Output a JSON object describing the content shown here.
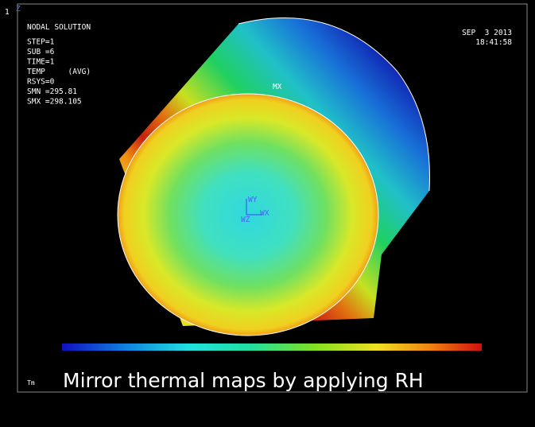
{
  "header": {
    "window_number": "1",
    "axis_label": "Z"
  },
  "info_lines": [
    "NODAL SOLUTION",
    "STEP=1",
    "SUB =6",
    "TIME=1",
    "TEMP     (AVG)",
    "RSYS=0",
    "SMN =295.81",
    "SMX =298.105"
  ],
  "date": "SEP  3 2013",
  "time": "18:41:58",
  "markers": {
    "max": "MX",
    "wy": "WY",
    "wx": "WX",
    "wz": "WZ"
  },
  "footer_label": "Tm",
  "caption": "Mirror thermal maps by applying RH"
}
